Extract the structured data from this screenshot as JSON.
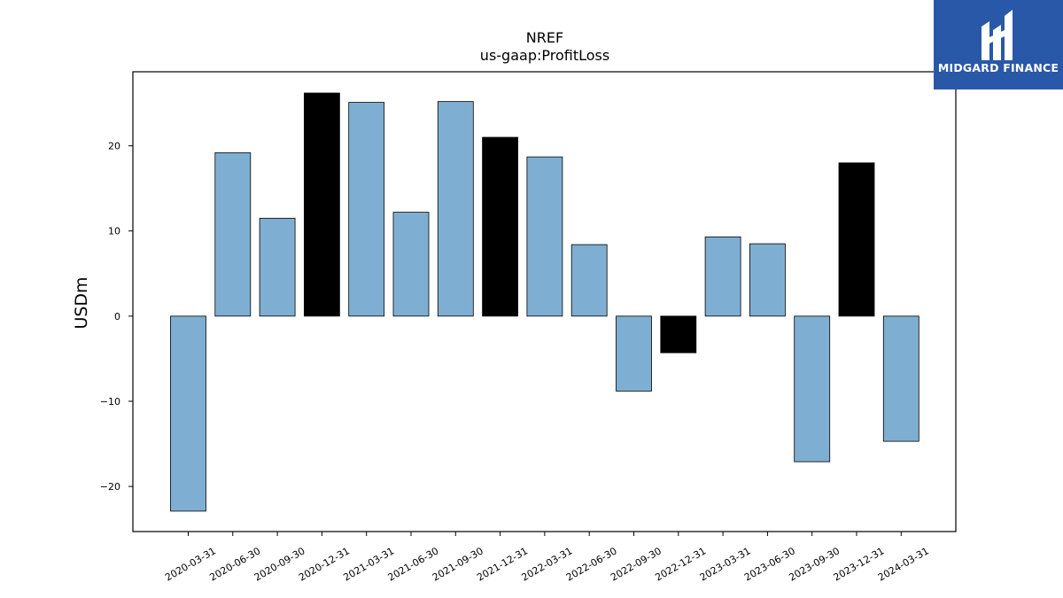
{
  "logo": {
    "text": "MIDGARD FINANCE",
    "color": "#2a58a8"
  },
  "chart_data": {
    "type": "bar",
    "title": "NREF",
    "subtitle": "us-gaap:ProfitLoss",
    "xlabel": "",
    "ylabel": "USDm",
    "ylim": [
      -25.3,
      28.7
    ],
    "yticks": [
      -20,
      -10,
      0,
      10,
      20
    ],
    "grid": false,
    "categories": [
      "2020-03-31",
      "2020-06-30",
      "2020-09-30",
      "2020-12-31",
      "2021-03-31",
      "2021-06-30",
      "2021-09-30",
      "2021-12-31",
      "2022-03-31",
      "2022-06-30",
      "2022-09-30",
      "2022-12-31",
      "2023-03-31",
      "2023-06-30",
      "2023-09-30",
      "2023-12-31",
      "2024-03-31"
    ],
    "values": [
      -22.9,
      19.2,
      11.5,
      26.2,
      25.1,
      12.2,
      25.2,
      21.0,
      18.7,
      8.4,
      -8.8,
      -4.3,
      9.3,
      8.5,
      -17.1,
      18.0,
      -14.7
    ],
    "colors": {
      "quarter": "#7eafd3",
      "year_end": "#000000",
      "edge": "#000000"
    }
  }
}
